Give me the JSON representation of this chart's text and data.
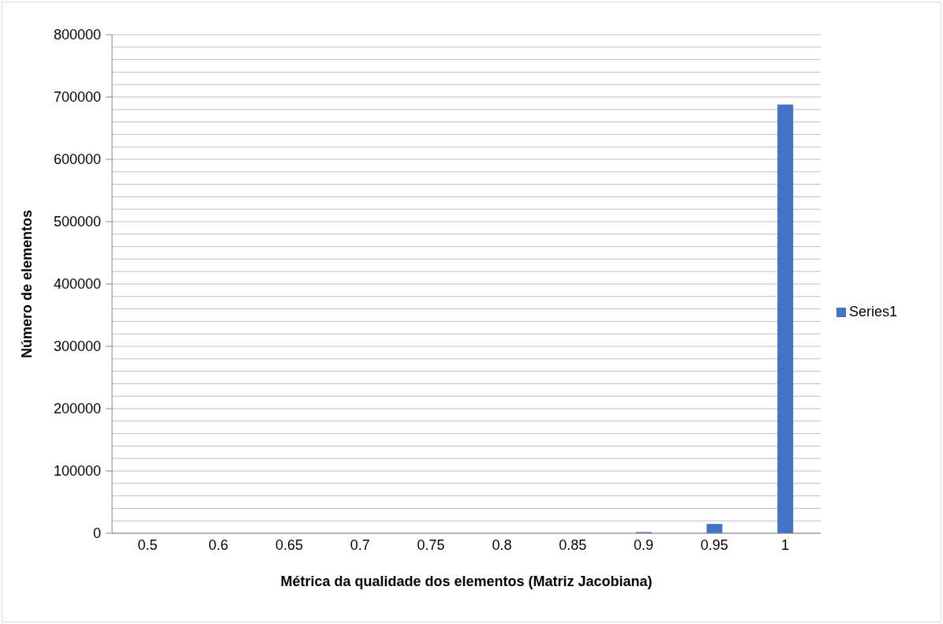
{
  "chart_data": {
    "type": "bar",
    "xlabel": "Métrica da qualidade dos elementos (Matriz Jacobiana)",
    "ylabel": "Número de elementos",
    "categories": [
      "0.5",
      "0.6",
      "0.65",
      "0.7",
      "0.75",
      "0.8",
      "0.85",
      "0.9",
      "0.95",
      "1"
    ],
    "series": [
      {
        "name": "Series1",
        "color": "#4472c4",
        "values": [
          0,
          0,
          0,
          0,
          0,
          0,
          0,
          2000,
          15000,
          688000
        ]
      }
    ],
    "ylim": [
      0,
      800000
    ],
    "yticks": [
      0,
      {
        "value": 20000,
        "label": null
      },
      {
        "value": 40000,
        "label": null
      },
      {
        "value": 60000,
        "label": null
      },
      {
        "value": 80000,
        "label": null
      },
      100000,
      {
        "value": 120000,
        "label": null
      },
      {
        "value": 140000,
        "label": null
      },
      {
        "value": 160000,
        "label": null
      },
      {
        "value": 180000,
        "label": null
      },
      200000,
      {
        "value": 220000,
        "label": null
      },
      {
        "value": 240000,
        "label": null
      },
      {
        "value": 260000,
        "label": null
      },
      {
        "value": 280000,
        "label": null
      },
      300000,
      {
        "value": 320000,
        "label": null
      },
      {
        "value": 340000,
        "label": null
      },
      {
        "value": 360000,
        "label": null
      },
      {
        "value": 380000,
        "label": null
      },
      400000,
      {
        "value": 420000,
        "label": null
      },
      {
        "value": 440000,
        "label": null
      },
      {
        "value": 460000,
        "label": null
      },
      {
        "value": 480000,
        "label": null
      },
      500000,
      {
        "value": 520000,
        "label": null
      },
      {
        "value": 540000,
        "label": null
      },
      {
        "value": 560000,
        "label": null
      },
      {
        "value": 580000,
        "label": null
      },
      600000,
      {
        "value": 620000,
        "label": null
      },
      {
        "value": 640000,
        "label": null
      },
      {
        "value": 660000,
        "label": null
      },
      {
        "value": 680000,
        "label": null
      },
      700000,
      {
        "value": 720000,
        "label": null
      },
      {
        "value": 740000,
        "label": null
      },
      {
        "value": 760000,
        "label": null
      },
      {
        "value": 780000,
        "label": null
      },
      800000
    ],
    "grid": "y",
    "legend": "right"
  }
}
